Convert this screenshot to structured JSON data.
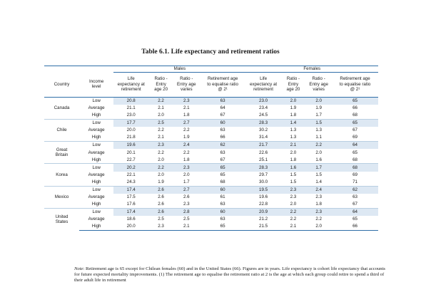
{
  "title": "Table 6.1. Life expectancy and retirement ratios",
  "groups": {
    "males": "Males",
    "females": "Females"
  },
  "headers": {
    "country": "Country",
    "income": [
      "Income",
      "level"
    ],
    "life": [
      "Life",
      "expectancy at",
      "retirement"
    ],
    "ratio_entry20": [
      "Ratio -",
      "Entry",
      "age 20"
    ],
    "ratio_entry_varies": [
      "Ratio -",
      "Entry age",
      "varies"
    ],
    "ret_age": [
      "Retirement age",
      "to equalise ratio",
      "@ 2¹"
    ]
  },
  "countries": [
    {
      "name": [
        "Canada"
      ],
      "rows": [
        {
          "income": "Low",
          "m": [
            "20.8",
            "2.2",
            "2.3",
            "63"
          ],
          "f": [
            "23.0",
            "2.0",
            "2.0",
            "65"
          ]
        },
        {
          "income": "Average",
          "m": [
            "21.1",
            "2.1",
            "2.1",
            "64"
          ],
          "f": [
            "23.4",
            "1.9",
            "1.9",
            "66"
          ]
        },
        {
          "income": "High",
          "m": [
            "23.0",
            "2.0",
            "1.8",
            "67"
          ],
          "f": [
            "24.5",
            "1.8",
            "1.7",
            "68"
          ]
        }
      ]
    },
    {
      "name": [
        "Chile"
      ],
      "rows": [
        {
          "income": "Low",
          "m": [
            "17.7",
            "2.5",
            "2.7",
            "60"
          ],
          "f": [
            "28.3",
            "1.4",
            "1.5",
            "65"
          ]
        },
        {
          "income": "Average",
          "m": [
            "20.0",
            "2.2",
            "2.2",
            "63"
          ],
          "f": [
            "30.2",
            "1.3",
            "1.3",
            "67"
          ]
        },
        {
          "income": "High",
          "m": [
            "21.8",
            "2.1",
            "1.9",
            "66"
          ],
          "f": [
            "31.4",
            "1.3",
            "1.1",
            "69"
          ]
        }
      ]
    },
    {
      "name": [
        "Great",
        "Britain"
      ],
      "rows": [
        {
          "income": "Low",
          "m": [
            "19.6",
            "2.3",
            "2.4",
            "62"
          ],
          "f": [
            "21.7",
            "2.1",
            "2.2",
            "64"
          ]
        },
        {
          "income": "Average",
          "m": [
            "20.1",
            "2.2",
            "2.2",
            "63"
          ],
          "f": [
            "22.6",
            "2.0",
            "2.0",
            "65"
          ]
        },
        {
          "income": "High",
          "m": [
            "22.7",
            "2.0",
            "1.8",
            "67"
          ],
          "f": [
            "25.1",
            "1.8",
            "1.6",
            "68"
          ]
        }
      ]
    },
    {
      "name": [
        "Korea"
      ],
      "rows": [
        {
          "income": "Low",
          "m": [
            "20.2",
            "2.2",
            "2.3",
            "65"
          ],
          "f": [
            "28.3",
            "1.6",
            "1.7",
            "68"
          ]
        },
        {
          "income": "Average",
          "m": [
            "22.1",
            "2.0",
            "2.0",
            "65"
          ],
          "f": [
            "29.7",
            "1.5",
            "1.5",
            "69"
          ]
        },
        {
          "income": "High",
          "m": [
            "24.3",
            "1.9",
            "1.7",
            "68"
          ],
          "f": [
            "30.0",
            "1.5",
            "1.4",
            "71"
          ]
        }
      ]
    },
    {
      "name": [
        "Mexico"
      ],
      "rows": [
        {
          "income": "Low",
          "m": [
            "17.4",
            "2.6",
            "2.7",
            "60"
          ],
          "f": [
            "19.5",
            "2.3",
            "2.4",
            "62"
          ]
        },
        {
          "income": "Average",
          "m": [
            "17.5",
            "2.6",
            "2.6",
            "61"
          ],
          "f": [
            "19.6",
            "2.3",
            "2.3",
            "63"
          ]
        },
        {
          "income": "High",
          "m": [
            "17.6",
            "2.6",
            "2.3",
            "63"
          ],
          "f": [
            "22.8",
            "2.0",
            "1.8",
            "67"
          ]
        }
      ]
    },
    {
      "name": [
        "United",
        "States"
      ],
      "rows": [
        {
          "income": "Low",
          "m": [
            "17.4",
            "2.6",
            "2.8",
            "60"
          ],
          "f": [
            "20.9",
            "2.2",
            "2.3",
            "64"
          ]
        },
        {
          "income": "Average",
          "m": [
            "18.6",
            "2.5",
            "2.5",
            "63"
          ],
          "f": [
            "21.2",
            "2.2",
            "2.2",
            "65"
          ]
        },
        {
          "income": "High",
          "m": [
            "20.0",
            "2.3",
            "2.1",
            "65"
          ],
          "f": [
            "21.5",
            "2.1",
            "2.0",
            "66"
          ]
        }
      ]
    }
  ],
  "note": {
    "label": "Note",
    "text": ": Retirement age is 65 except for Chilean females (60) and in the United States (66). Figures are in years. Life expectancy is cohort life expectancy that accounts for future expected mortality improvements. (1) The retirement age to equalise the retirement ratio at 2 is the age at which each group could retire to spend a third of their adult life in retirement"
  }
}
